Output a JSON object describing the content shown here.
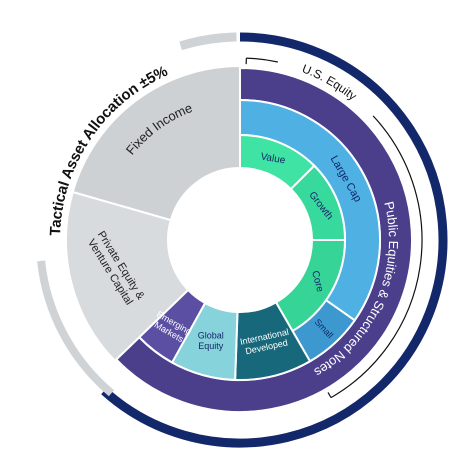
{
  "title": "Tactical Asset Allocation ±5%",
  "bracket_label": "U.S. Equity",
  "segments": [
    {
      "lines": [
        "Public Equities & Structured Notes"
      ]
    },
    {
      "lines": [
        "Fixed Income"
      ]
    },
    {
      "lines": [
        "Private Equity &",
        "Venture Capital"
      ]
    },
    {
      "lines": [
        "Large Cap"
      ]
    },
    {
      "lines": [
        "Small"
      ]
    },
    {
      "lines": [
        "Value"
      ]
    },
    {
      "lines": [
        "Growth"
      ]
    },
    {
      "lines": [
        "Core"
      ]
    },
    {
      "lines": [
        "International",
        "Developed"
      ]
    },
    {
      "lines": [
        "Global",
        "Equity"
      ]
    },
    {
      "lines": [
        "Emerging",
        "Markets"
      ]
    }
  ]
}
